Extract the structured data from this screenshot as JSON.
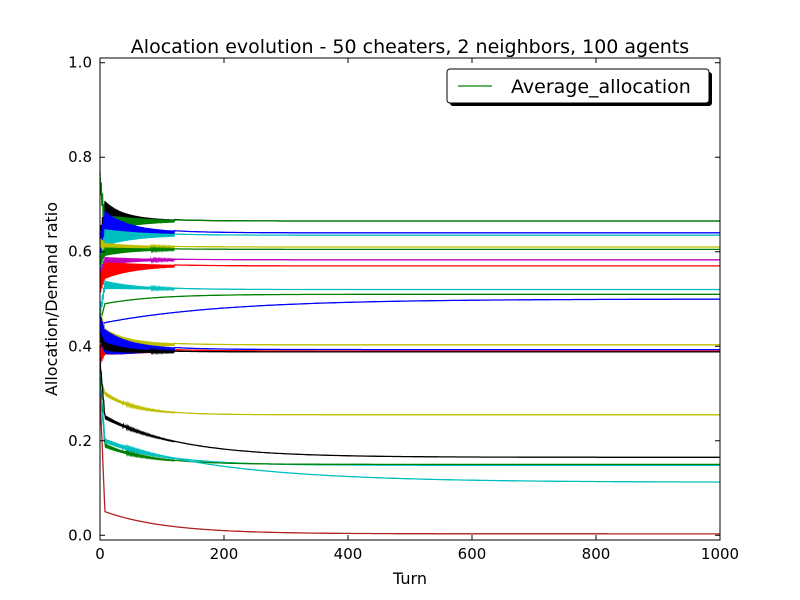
{
  "chart_data": {
    "type": "line",
    "title": "Alocation evolution - 50 cheaters, 2 neighbors, 100 agents",
    "xlabel": "Turn",
    "ylabel": "Allocation/Demand ratio",
    "xlim": [
      0,
      1000
    ],
    "ylim": [
      -0.01,
      1.01
    ],
    "xticks": [
      "0",
      "200",
      "400",
      "600",
      "800",
      "1000"
    ],
    "yticks": [
      "0.0",
      "0.2",
      "0.4",
      "0.6",
      "0.8",
      "1.0"
    ],
    "grid": false,
    "legend": {
      "position": "top-right",
      "entries": [
        "Average_allocation"
      ]
    },
    "series": [
      {
        "color": "#000000",
        "start": 0.62,
        "peak": 0.69,
        "end": 0.665,
        "tau": 25,
        "osc": 0.02
      },
      {
        "color": "#008000",
        "start": 0.75,
        "peak": 0.66,
        "end": 0.665,
        "tau": 40,
        "osc": 0.02
      },
      {
        "color": "#0000ff",
        "start": 0.6,
        "peak": 0.66,
        "end": 0.64,
        "tau": 30,
        "osc": 0.03
      },
      {
        "color": "#00bfbf",
        "start": 0.56,
        "peak": 0.63,
        "end": 0.635,
        "tau": 40,
        "osc": 0.02
      },
      {
        "color": "#bfbf00",
        "start": 0.62,
        "peak": 0.61,
        "end": 0.61,
        "tau": 40,
        "osc": 0.01
      },
      {
        "color": "#008000",
        "start": 0.58,
        "peak": 0.6,
        "end": 0.605,
        "tau": 40,
        "osc": 0.01
      },
      {
        "color": "#bf00bf",
        "start": 0.55,
        "peak": 0.58,
        "end": 0.583,
        "tau": 40,
        "osc": 0.01
      },
      {
        "color": "#ff0000",
        "start": 0.53,
        "peak": 0.56,
        "end": 0.57,
        "tau": 40,
        "osc": 0.02
      },
      {
        "color": "#00bfbf",
        "start": 0.47,
        "peak": 0.53,
        "end": 0.52,
        "tau": 60,
        "osc": 0.01
      },
      {
        "color": "#008000",
        "start": 0.45,
        "peak": 0.49,
        "end": 0.51,
        "tau": 80,
        "osc": 0.0
      },
      {
        "color": "#0000ff",
        "start": 0.44,
        "peak": 0.45,
        "end": 0.5,
        "tau": 200,
        "osc": 0.0
      },
      {
        "color": "#bfbf00",
        "start": 0.46,
        "peak": 0.42,
        "end": 0.403,
        "tau": 30,
        "osc": 0.02
      },
      {
        "color": "#ff0000",
        "start": 0.38,
        "peak": 0.4,
        "end": 0.39,
        "tau": 30,
        "osc": 0.02
      },
      {
        "color": "#0000ff",
        "start": 0.44,
        "peak": 0.41,
        "end": 0.393,
        "tau": 30,
        "osc": 0.03
      },
      {
        "color": "#000000",
        "start": 0.42,
        "peak": 0.4,
        "end": 0.388,
        "tau": 30,
        "osc": 0.01
      },
      {
        "color": "#bfbf00",
        "start": 0.33,
        "peak": 0.3,
        "end": 0.255,
        "tau": 50,
        "osc": 0.005
      },
      {
        "color": "#000000",
        "start": 0.37,
        "peak": 0.25,
        "end": 0.165,
        "tau": 120,
        "osc": 0.005
      },
      {
        "color": "#00bfbf",
        "start": 0.34,
        "peak": 0.2,
        "end": 0.148,
        "tau": 90,
        "osc": 0.005
      },
      {
        "color": "#008000",
        "start": 0.33,
        "peak": 0.19,
        "end": 0.15,
        "tau": 70,
        "osc": 0.005
      },
      {
        "color": "#00bfbf",
        "start": 0.31,
        "peak": 0.2,
        "end": 0.112,
        "tau": 200,
        "osc": 0.005
      },
      {
        "color": "#b22222",
        "start": 0.3,
        "peak": 0.05,
        "end": 0.003,
        "tau": 100,
        "osc": 0.0
      }
    ],
    "average_series": {
      "name": "Average_allocation",
      "color": "#008000"
    }
  }
}
